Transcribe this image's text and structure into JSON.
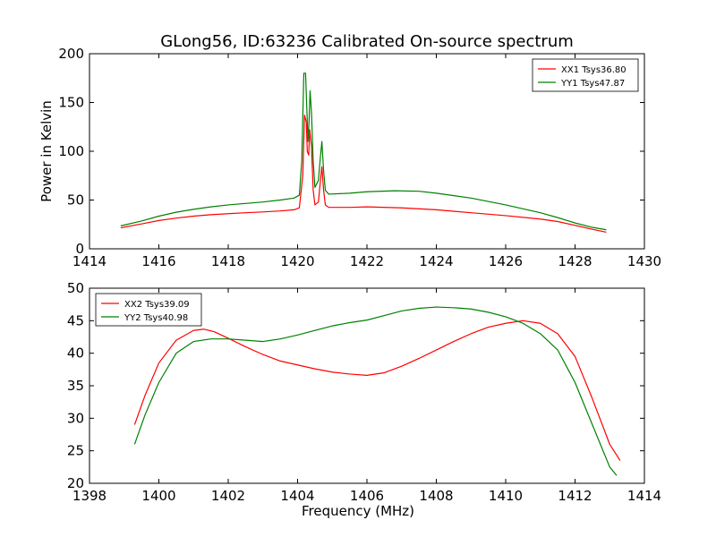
{
  "figure_title": "GLong56, ID:63236 Calibrated On-source spectrum",
  "chart_data": [
    {
      "type": "line",
      "title": "GLong56, ID:63236 Calibrated On-source spectrum",
      "xlabel": "",
      "ylabel": "Power in Kelvin",
      "xlim": [
        1414,
        1430
      ],
      "ylim": [
        0,
        200
      ],
      "xticks": [
        "1414",
        "1416",
        "1418",
        "1420",
        "1422",
        "1424",
        "1426",
        "1428",
        "1430"
      ],
      "yticks": [
        "0",
        "50",
        "100",
        "150",
        "200"
      ],
      "legend_position": "top-right",
      "grid": false,
      "series": [
        {
          "name": "XX1 Tsys36.80",
          "color": "#ff0000",
          "points": [
            [
              1414.9,
              21.5
            ],
            [
              1415.5,
              25.5
            ],
            [
              1416.0,
              29.0
            ],
            [
              1416.5,
              31.5
            ],
            [
              1417.0,
              33.5
            ],
            [
              1417.5,
              35.0
            ],
            [
              1418.0,
              36.0
            ],
            [
              1418.5,
              37.0
            ],
            [
              1419.0,
              37.8
            ],
            [
              1419.5,
              38.8
            ],
            [
              1419.9,
              40.0
            ],
            [
              1420.05,
              42.0
            ],
            [
              1420.15,
              75.0
            ],
            [
              1420.2,
              137.0
            ],
            [
              1420.25,
              130.0
            ],
            [
              1420.28,
              100.0
            ],
            [
              1420.32,
              96.0
            ],
            [
              1420.35,
              122.0
            ],
            [
              1420.4,
              105.0
            ],
            [
              1420.45,
              60.0
            ],
            [
              1420.5,
              45.0
            ],
            [
              1420.6,
              48.0
            ],
            [
              1420.66,
              70.0
            ],
            [
              1420.7,
              84.0
            ],
            [
              1420.75,
              60.0
            ],
            [
              1420.8,
              45.0
            ],
            [
              1420.9,
              42.5
            ],
            [
              1421.5,
              42.5
            ],
            [
              1422.0,
              43.0
            ],
            [
              1423.0,
              42.0
            ],
            [
              1424.0,
              40.0
            ],
            [
              1425.0,
              37.0
            ],
            [
              1426.0,
              34.0
            ],
            [
              1427.0,
              30.5
            ],
            [
              1427.5,
              28.0
            ],
            [
              1428.0,
              24.0
            ],
            [
              1428.5,
              20.0
            ],
            [
              1428.9,
              17.0
            ]
          ]
        },
        {
          "name": "YY1 Tsys47.87",
          "color": "#008000",
          "points": [
            [
              1414.9,
              23.5
            ],
            [
              1415.5,
              28.5
            ],
            [
              1416.0,
              33.5
            ],
            [
              1416.5,
              37.5
            ],
            [
              1417.0,
              40.5
            ],
            [
              1417.5,
              43.0
            ],
            [
              1418.0,
              45.0
            ],
            [
              1418.5,
              46.5
            ],
            [
              1419.0,
              48.0
            ],
            [
              1419.5,
              50.0
            ],
            [
              1419.9,
              52.0
            ],
            [
              1420.05,
              55.0
            ],
            [
              1420.12,
              90.0
            ],
            [
              1420.18,
              180.0
            ],
            [
              1420.23,
              180.0
            ],
            [
              1420.27,
              140.0
            ],
            [
              1420.3,
              110.0
            ],
            [
              1420.33,
              130.0
            ],
            [
              1420.36,
              162.0
            ],
            [
              1420.4,
              140.0
            ],
            [
              1420.45,
              90.0
            ],
            [
              1420.5,
              63.0
            ],
            [
              1420.6,
              70.0
            ],
            [
              1420.66,
              95.0
            ],
            [
              1420.7,
              110.0
            ],
            [
              1420.75,
              80.0
            ],
            [
              1420.8,
              60.0
            ],
            [
              1420.9,
              56.0
            ],
            [
              1421.5,
              57.0
            ],
            [
              1422.0,
              58.5
            ],
            [
              1422.8,
              59.5
            ],
            [
              1423.5,
              59.0
            ],
            [
              1424.0,
              57.0
            ],
            [
              1425.0,
              52.0
            ],
            [
              1426.0,
              45.0
            ],
            [
              1427.0,
              37.0
            ],
            [
              1427.5,
              32.0
            ],
            [
              1428.0,
              26.5
            ],
            [
              1428.5,
              22.0
            ],
            [
              1428.9,
              19.5
            ]
          ]
        }
      ]
    },
    {
      "type": "line",
      "title": "",
      "xlabel": "Frequency (MHz)",
      "ylabel": "",
      "xlim": [
        1398,
        1414
      ],
      "ylim": [
        20,
        50
      ],
      "xticks": [
        "1398",
        "1400",
        "1402",
        "1404",
        "1406",
        "1408",
        "1410",
        "1412",
        "1414"
      ],
      "yticks": [
        "20",
        "25",
        "30",
        "35",
        "40",
        "45",
        "50"
      ],
      "legend_position": "top-left",
      "grid": false,
      "series": [
        {
          "name": "XX2 Tsys39.09",
          "color": "#ff0000",
          "points": [
            [
              1399.3,
              29.0
            ],
            [
              1399.6,
              33.5
            ],
            [
              1400.0,
              38.5
            ],
            [
              1400.5,
              42.0
            ],
            [
              1401.0,
              43.5
            ],
            [
              1401.3,
              43.7
            ],
            [
              1401.6,
              43.3
            ],
            [
              1402.0,
              42.3
            ],
            [
              1402.5,
              41.0
            ],
            [
              1403.0,
              39.8
            ],
            [
              1403.5,
              38.8
            ],
            [
              1404.0,
              38.2
            ],
            [
              1404.5,
              37.6
            ],
            [
              1405.0,
              37.1
            ],
            [
              1405.5,
              36.8
            ],
            [
              1406.0,
              36.6
            ],
            [
              1406.5,
              37.0
            ],
            [
              1407.0,
              38.0
            ],
            [
              1407.5,
              39.2
            ],
            [
              1408.0,
              40.5
            ],
            [
              1408.5,
              41.8
            ],
            [
              1409.0,
              43.0
            ],
            [
              1409.5,
              44.0
            ],
            [
              1410.0,
              44.6
            ],
            [
              1410.5,
              45.0
            ],
            [
              1411.0,
              44.6
            ],
            [
              1411.5,
              43.0
            ],
            [
              1412.0,
              39.5
            ],
            [
              1412.5,
              33.0
            ],
            [
              1413.0,
              26.0
            ],
            [
              1413.3,
              23.5
            ]
          ]
        },
        {
          "name": "YY2 Tsys40.98",
          "color": "#008000",
          "points": [
            [
              1399.3,
              26.0
            ],
            [
              1399.6,
              30.5
            ],
            [
              1400.0,
              35.5
            ],
            [
              1400.5,
              40.0
            ],
            [
              1401.0,
              41.8
            ],
            [
              1401.5,
              42.2
            ],
            [
              1402.0,
              42.2
            ],
            [
              1402.5,
              42.0
            ],
            [
              1403.0,
              41.8
            ],
            [
              1403.5,
              42.2
            ],
            [
              1404.0,
              42.8
            ],
            [
              1404.5,
              43.5
            ],
            [
              1405.0,
              44.2
            ],
            [
              1405.5,
              44.7
            ],
            [
              1406.0,
              45.1
            ],
            [
              1406.5,
              45.8
            ],
            [
              1407.0,
              46.5
            ],
            [
              1407.5,
              46.9
            ],
            [
              1408.0,
              47.1
            ],
            [
              1408.5,
              47.0
            ],
            [
              1409.0,
              46.8
            ],
            [
              1409.5,
              46.3
            ],
            [
              1410.0,
              45.6
            ],
            [
              1410.5,
              44.6
            ],
            [
              1411.0,
              43.0
            ],
            [
              1411.5,
              40.5
            ],
            [
              1412.0,
              35.5
            ],
            [
              1412.5,
              29.0
            ],
            [
              1413.0,
              22.5
            ],
            [
              1413.2,
              21.2
            ]
          ]
        }
      ]
    }
  ]
}
